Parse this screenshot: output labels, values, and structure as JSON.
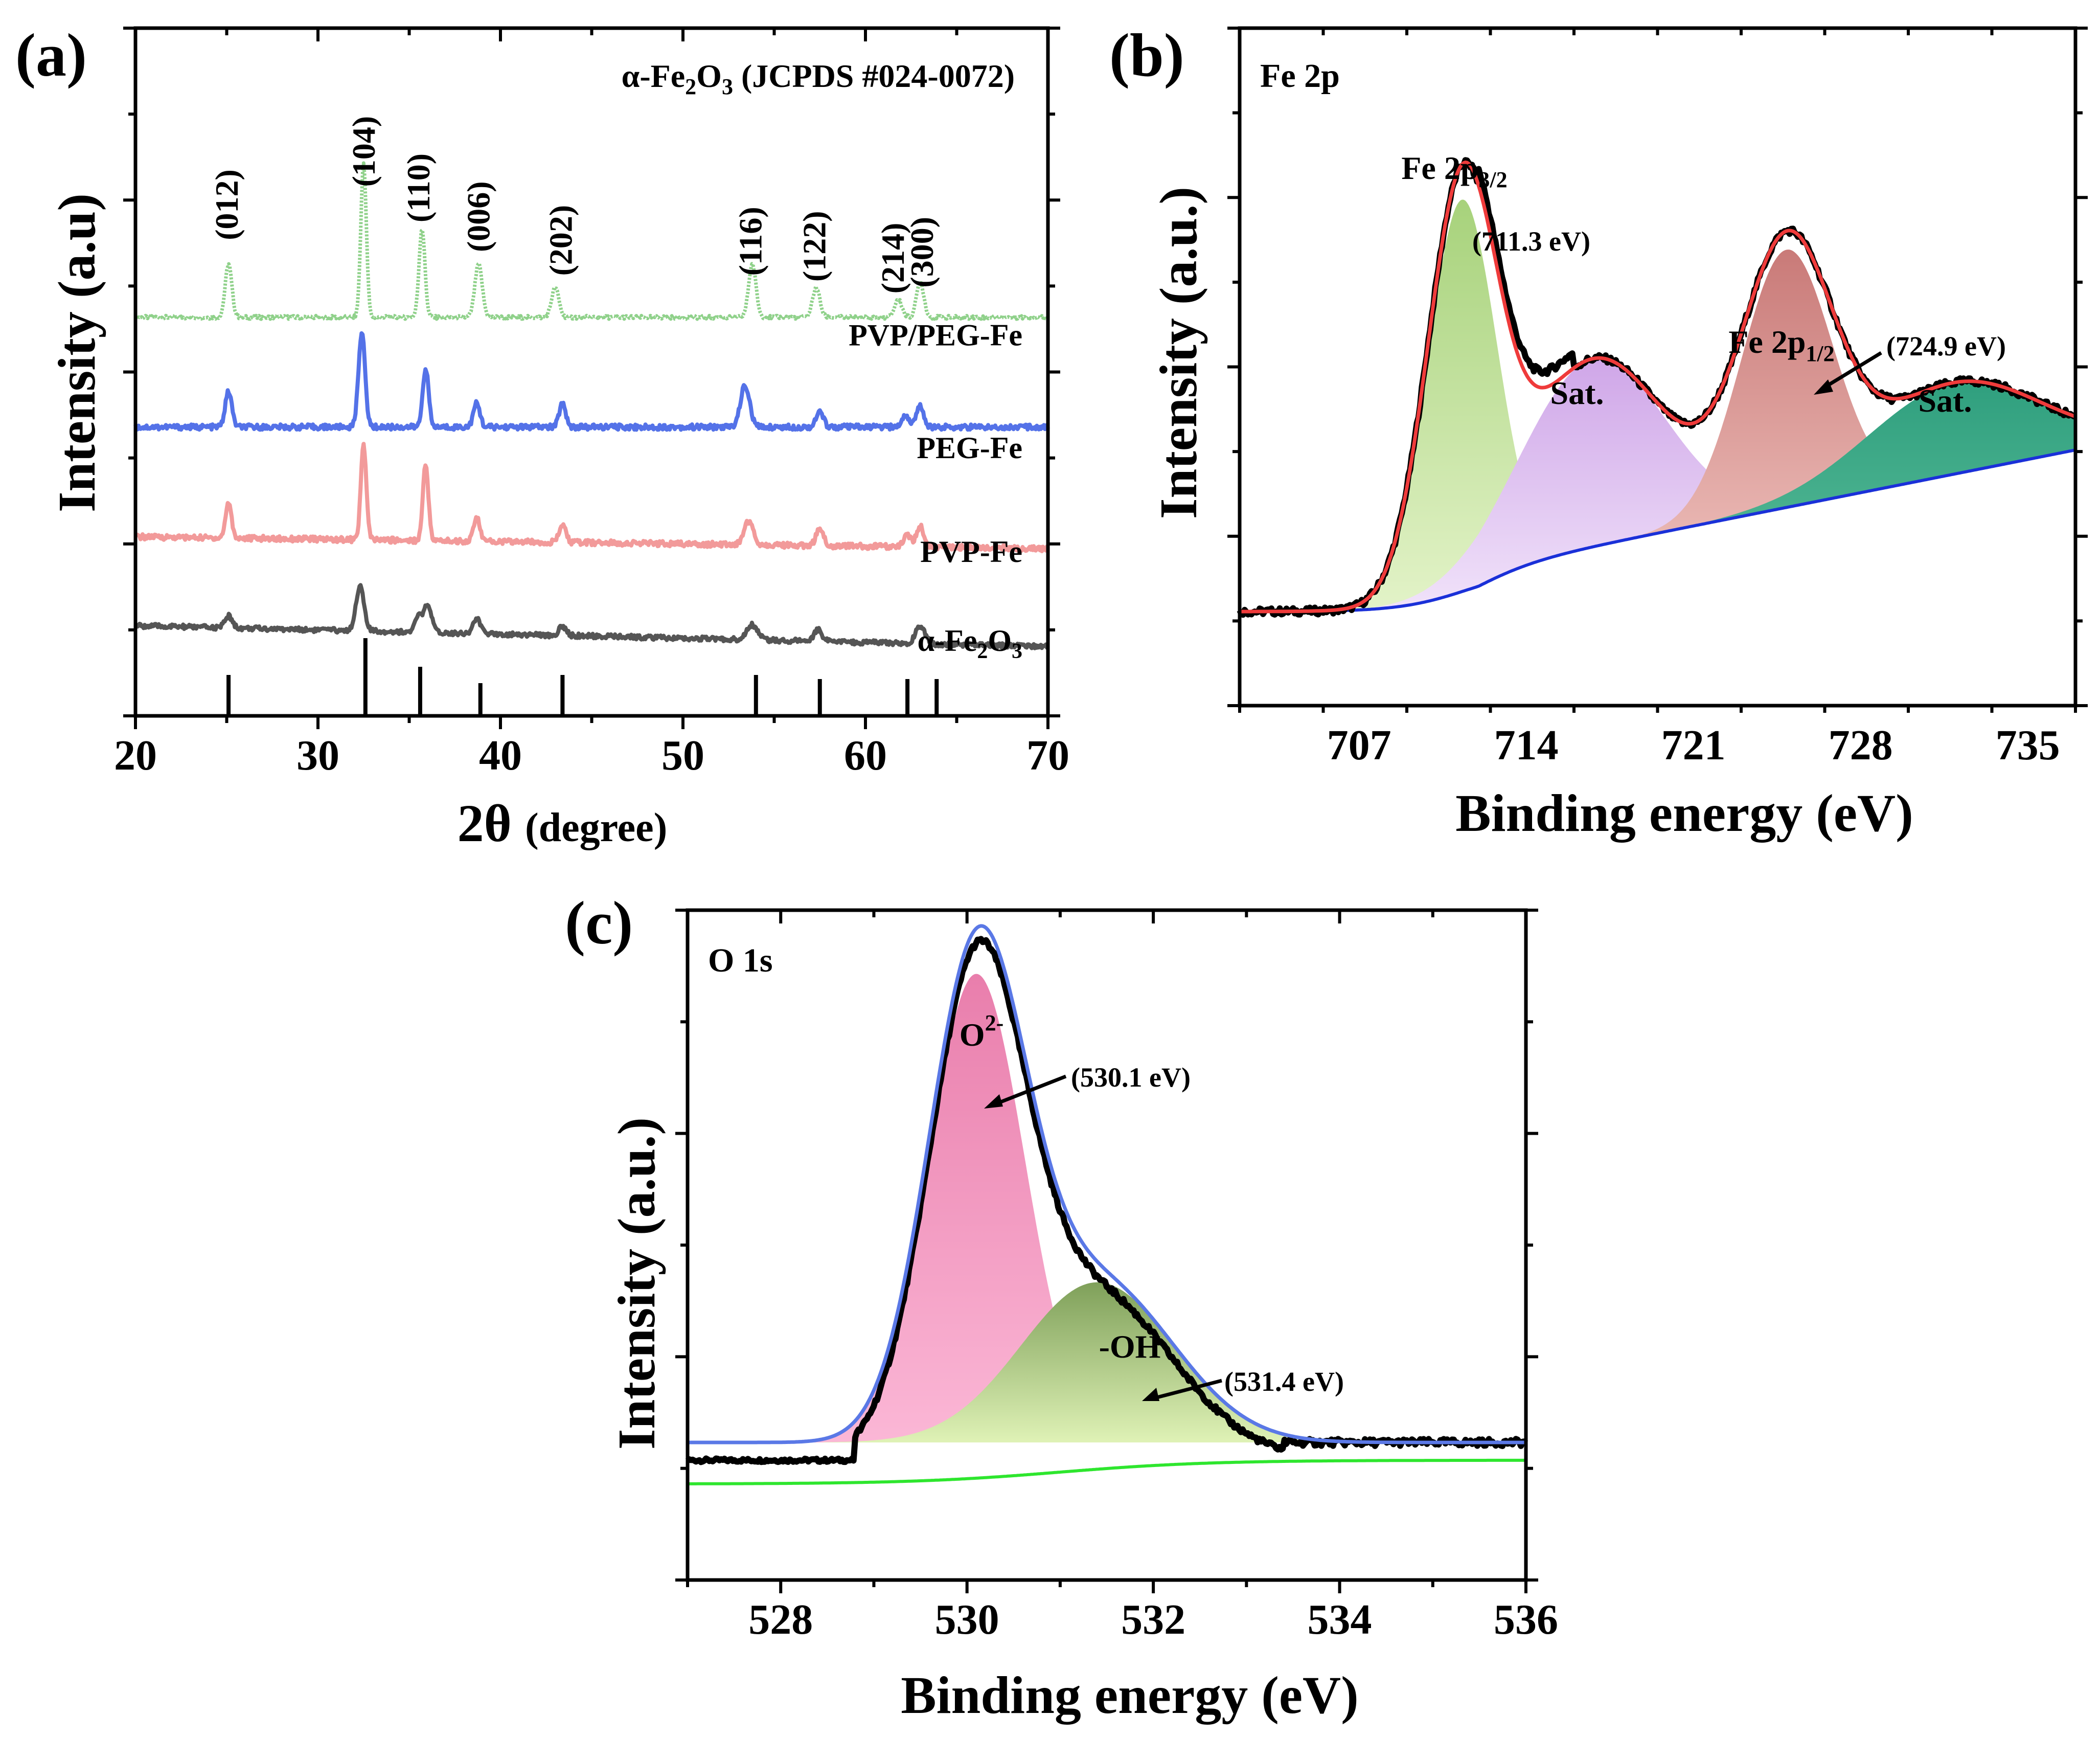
{
  "chart_data": [
    {
      "panel": "(a)",
      "type": "line",
      "title": "",
      "xlabel_main": "2θ",
      "xlabel_unit": "(degree)",
      "ylabel": "Intensity (a.u)",
      "xlim": [
        20,
        70
      ],
      "ylim": [
        0,
        100
      ],
      "xticks": [
        20,
        30,
        40,
        50,
        60,
        70
      ],
      "reference": {
        "label_prefix": "α-Fe",
        "label_sub1": "2",
        "label_mid": "O",
        "label_sub2": "3",
        "label_suffix": " (JCPDS #024-0072)",
        "lines": [
          {
            "x": 25.1,
            "h": 1.0
          },
          {
            "x": 32.6,
            "h": 1.9
          },
          {
            "x": 35.6,
            "h": 1.2
          },
          {
            "x": 38.9,
            "h": 0.8
          },
          {
            "x": 43.4,
            "h": 1.0
          },
          {
            "x": 54.0,
            "h": 1.0
          },
          {
            "x": 57.5,
            "h": 0.9
          },
          {
            "x": 62.3,
            "h": 0.9
          },
          {
            "x": 63.9,
            "h": 0.9
          }
        ]
      },
      "hkl_labels": [
        {
          "text": "(012)",
          "x": 25.1,
          "y": 72
        },
        {
          "text": "(104)",
          "x": 32.6,
          "y": 81
        },
        {
          "text": "(110)",
          "x": 35.6,
          "y": 75
        },
        {
          "text": "(006)",
          "x": 38.9,
          "y": 70
        },
        {
          "text": "(202)",
          "x": 43.4,
          "y": 66
        },
        {
          "text": "(116)",
          "x": 53.8,
          "y": 66
        },
        {
          "text": "(122)",
          "x": 57.3,
          "y": 65
        },
        {
          "text": "(214)",
          "x": 61.6,
          "y": 63
        },
        {
          "text": "(300)",
          "x": 63.2,
          "y": 64
        }
      ],
      "series": [
        {
          "name": "PVP/PEG-Fe",
          "color": "#8fd18a",
          "style": "dotted",
          "baseline": 59,
          "slope": 0,
          "noise": 0.3,
          "label_y": 56,
          "peaks": [
            [
              25.1,
              9,
              0.18
            ],
            [
              32.5,
              26,
              0.15
            ],
            [
              35.7,
              15,
              0.16
            ],
            [
              38.8,
              9,
              0.2
            ],
            [
              43.0,
              5,
              0.2
            ],
            [
              53.8,
              9,
              0.2
            ],
            [
              57.3,
              5,
              0.2
            ],
            [
              61.8,
              3,
              0.2
            ],
            [
              63.0,
              6,
              0.2
            ]
          ]
        },
        {
          "name": "PEG-Fe",
          "color": "#5472e8",
          "style": "solid",
          "baseline": 40.5,
          "slope": 0,
          "noise": 0.45,
          "label_y": 37,
          "peaks": [
            [
              25.1,
              6,
              0.18
            ],
            [
              32.4,
              16,
              0.18
            ],
            [
              35.9,
              10,
              0.16
            ],
            [
              38.7,
              4,
              0.18
            ],
            [
              43.4,
              4,
              0.18
            ],
            [
              53.4,
              7,
              0.25
            ],
            [
              57.5,
              2.5,
              0.2
            ],
            [
              62.2,
              2,
              0.2
            ],
            [
              63.0,
              3.5,
              0.2
            ]
          ]
        },
        {
          "name": "PVP-Fe",
          "color": "#f29a9a",
          "style": "solid",
          "baseline": 22,
          "slope": 0.04,
          "noise": 0.45,
          "label_y": 19.5,
          "peaks": [
            [
              25.1,
              6,
              0.16
            ],
            [
              32.5,
              16,
              0.15
            ],
            [
              35.9,
              13,
              0.15
            ],
            [
              38.7,
              4,
              0.17
            ],
            [
              43.4,
              3,
              0.18
            ],
            [
              53.6,
              4,
              0.25
            ],
            [
              57.5,
              3,
              0.2
            ],
            [
              62.3,
              2,
              0.2
            ],
            [
              63.0,
              3.5,
              0.2
            ]
          ]
        },
        {
          "name_prefix": "α-Fe",
          "name_sub1": "2",
          "name_mid": "O",
          "name_sub2": "3",
          "name": "α-Fe2O3",
          "color": "#555555",
          "style": "solid",
          "baseline": 7,
          "slope": 0.07,
          "noise": 0.4,
          "label_y": 4.5,
          "peaks": [
            [
              25.1,
              2,
              0.2
            ],
            [
              32.3,
              7.5,
              0.22
            ],
            [
              35.5,
              2.5,
              0.18
            ],
            [
              36.0,
              4.5,
              0.22
            ],
            [
              38.7,
              2.5,
              0.2
            ],
            [
              43.4,
              1.5,
              0.2
            ],
            [
              53.8,
              2.5,
              0.3
            ],
            [
              57.4,
              2,
              0.22
            ],
            [
              63.0,
              3,
              0.25
            ]
          ]
        }
      ]
    },
    {
      "panel": "(b)",
      "type": "area",
      "corner_label": "Fe 2p",
      "xlabel": "Binding energy (eV)",
      "ylabel": "Intensity (a.u.)",
      "xlim": [
        702,
        737
      ],
      "ylim": [
        0,
        100
      ],
      "xticks": [
        707,
        714,
        721,
        728,
        735
      ],
      "background": {
        "color": "#1a30d8",
        "fill": "#15c9b5",
        "start": 8,
        "end": 34,
        "step_center": 711.5,
        "step_width": 1.4,
        "slope_start": 712,
        "slope_end": 737
      },
      "components": [
        {
          "name": "Fe 2p3/2",
          "center": 711.3,
          "height": 73,
          "width": 1.45,
          "fill_top": "#a7d27b",
          "fill_bottom": "#e3f3c8"
        },
        {
          "name": "Sat.",
          "center": 716.8,
          "height": 35,
          "width": 3.0,
          "fill_top": "#cfa6e8",
          "fill_bottom": "#f1e3fa"
        },
        {
          "name": "Fe 2p1/2",
          "center": 724.9,
          "height": 48,
          "width": 1.9,
          "fill_top": "#c97a78",
          "fill_bottom": "#eab8b4"
        },
        {
          "name": "Sat.",
          "center": 731.9,
          "height": 17,
          "width": 3.6,
          "fill_top": "#2f9f7e",
          "fill_bottom": "#4fb592"
        }
      ],
      "envelope_color": "#ef3b3b",
      "raw_color": "#000000",
      "annotations": {
        "p32_label_main": "Fe 2p",
        "p32_sub": "3/2",
        "p32_ev": "(711.3 eV)",
        "p12_label_main": "Fe 2p",
        "p12_sub": "1/2",
        "p12_ev": "(724.9 eV)",
        "sat1": "Sat.",
        "sat2": "Sat."
      }
    },
    {
      "panel": "(c)",
      "type": "area",
      "corner_label": "O 1s",
      "xlabel": "Binding energy (eV)",
      "ylabel": "Intensity (a.u.)",
      "xlim": [
        527,
        536
      ],
      "ylim": [
        0,
        100
      ],
      "xticks": [
        528,
        530,
        532,
        534,
        536
      ],
      "background": {
        "color": "#2ee62e",
        "start": 12,
        "end": 16,
        "step_center": 531.0,
        "step_width": 0.8
      },
      "components": [
        {
          "name": "O2-",
          "center": 530.1,
          "height": 79,
          "width": 0.52,
          "fill_top": "#e97eac",
          "fill_bottom": "#fbb7d6"
        },
        {
          "name": "-OH",
          "center": 531.4,
          "height": 27,
          "width": 0.82,
          "fill_top": "#7fa05a",
          "fill_bottom": "#dff2b6"
        }
      ],
      "envelope_color": "#5a78e6",
      "raw_color": "#000000",
      "annotations": {
        "o_main": "O",
        "o_sup": "2-",
        "o_ev": "(530.1 eV)",
        "oh": "-OH",
        "oh_ev": "(531.4 eV)"
      }
    }
  ]
}
